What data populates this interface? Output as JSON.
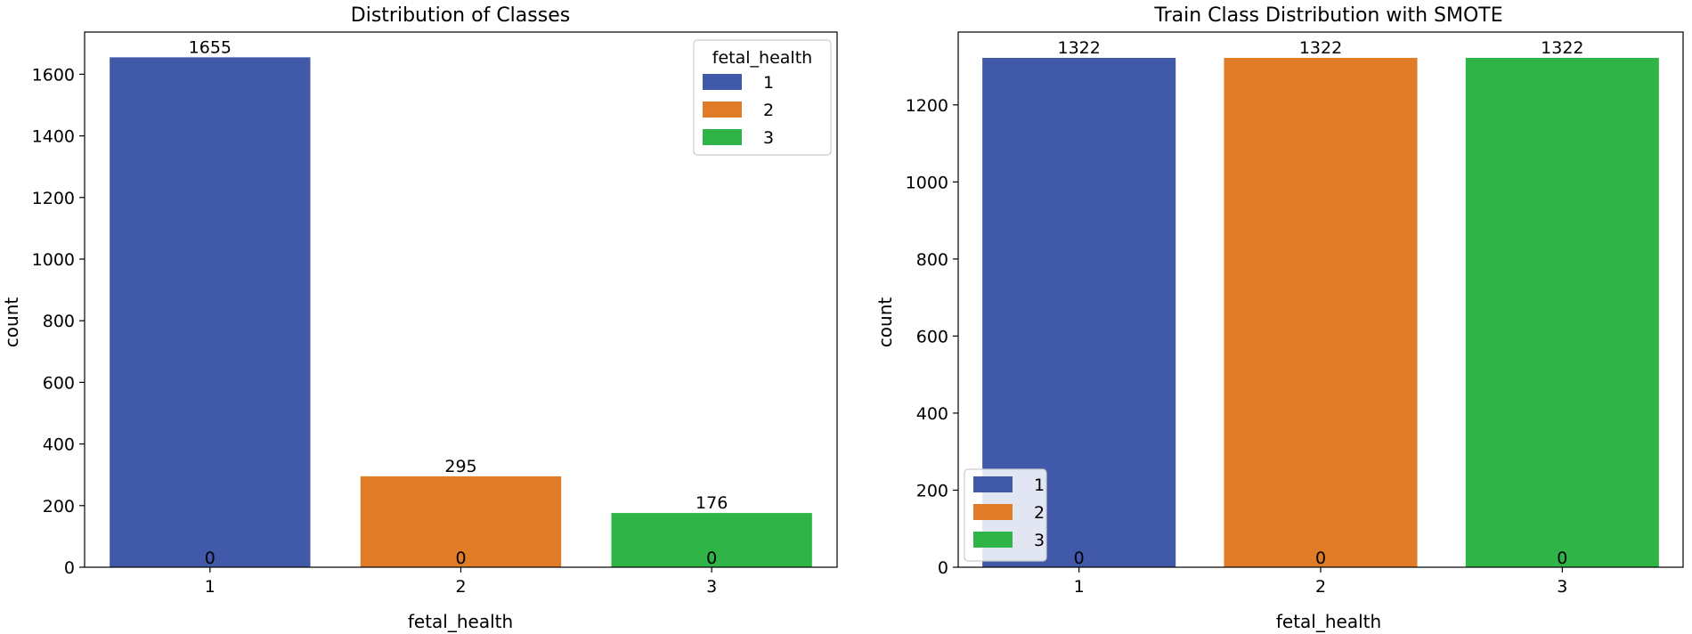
{
  "chart_data": [
    {
      "type": "bar",
      "title": "Distribution of Classes",
      "xlabel": "fetal_health",
      "ylabel": "count",
      "categories": [
        "1",
        "2",
        "3"
      ],
      "values": [
        1655,
        295,
        176
      ],
      "bar_labels_top": [
        "1655",
        "295",
        "176"
      ],
      "bar_labels_bottom": [
        "0",
        "0",
        "0"
      ],
      "colors": [
        "#4059a9",
        "#e07b27",
        "#2fb447"
      ],
      "ylim": [
        0,
        1737
      ],
      "yticks": [
        0,
        200,
        400,
        600,
        800,
        1000,
        1200,
        1400,
        1600
      ],
      "legend": {
        "title": "fetal_health",
        "entries": [
          "1",
          "2",
          "3"
        ],
        "placement": "top-right"
      },
      "grid": false
    },
    {
      "type": "bar",
      "title": "Train Class Distribution with SMOTE",
      "xlabel": "fetal_health",
      "ylabel": "count",
      "categories": [
        "1",
        "2",
        "3"
      ],
      "values": [
        1322,
        1322,
        1322
      ],
      "bar_labels_top": [
        "1322",
        "1322",
        "1322"
      ],
      "bar_labels_bottom": [
        "0",
        "0",
        "0"
      ],
      "colors": [
        "#4059a9",
        "#e07b27",
        "#2fb447"
      ],
      "ylim": [
        0,
        1389
      ],
      "yticks": [
        0,
        200,
        400,
        600,
        800,
        1000,
        1200
      ],
      "legend": {
        "title": "",
        "entries": [
          "1",
          "2",
          "3"
        ],
        "placement": "bottom-left"
      },
      "grid": false
    }
  ]
}
